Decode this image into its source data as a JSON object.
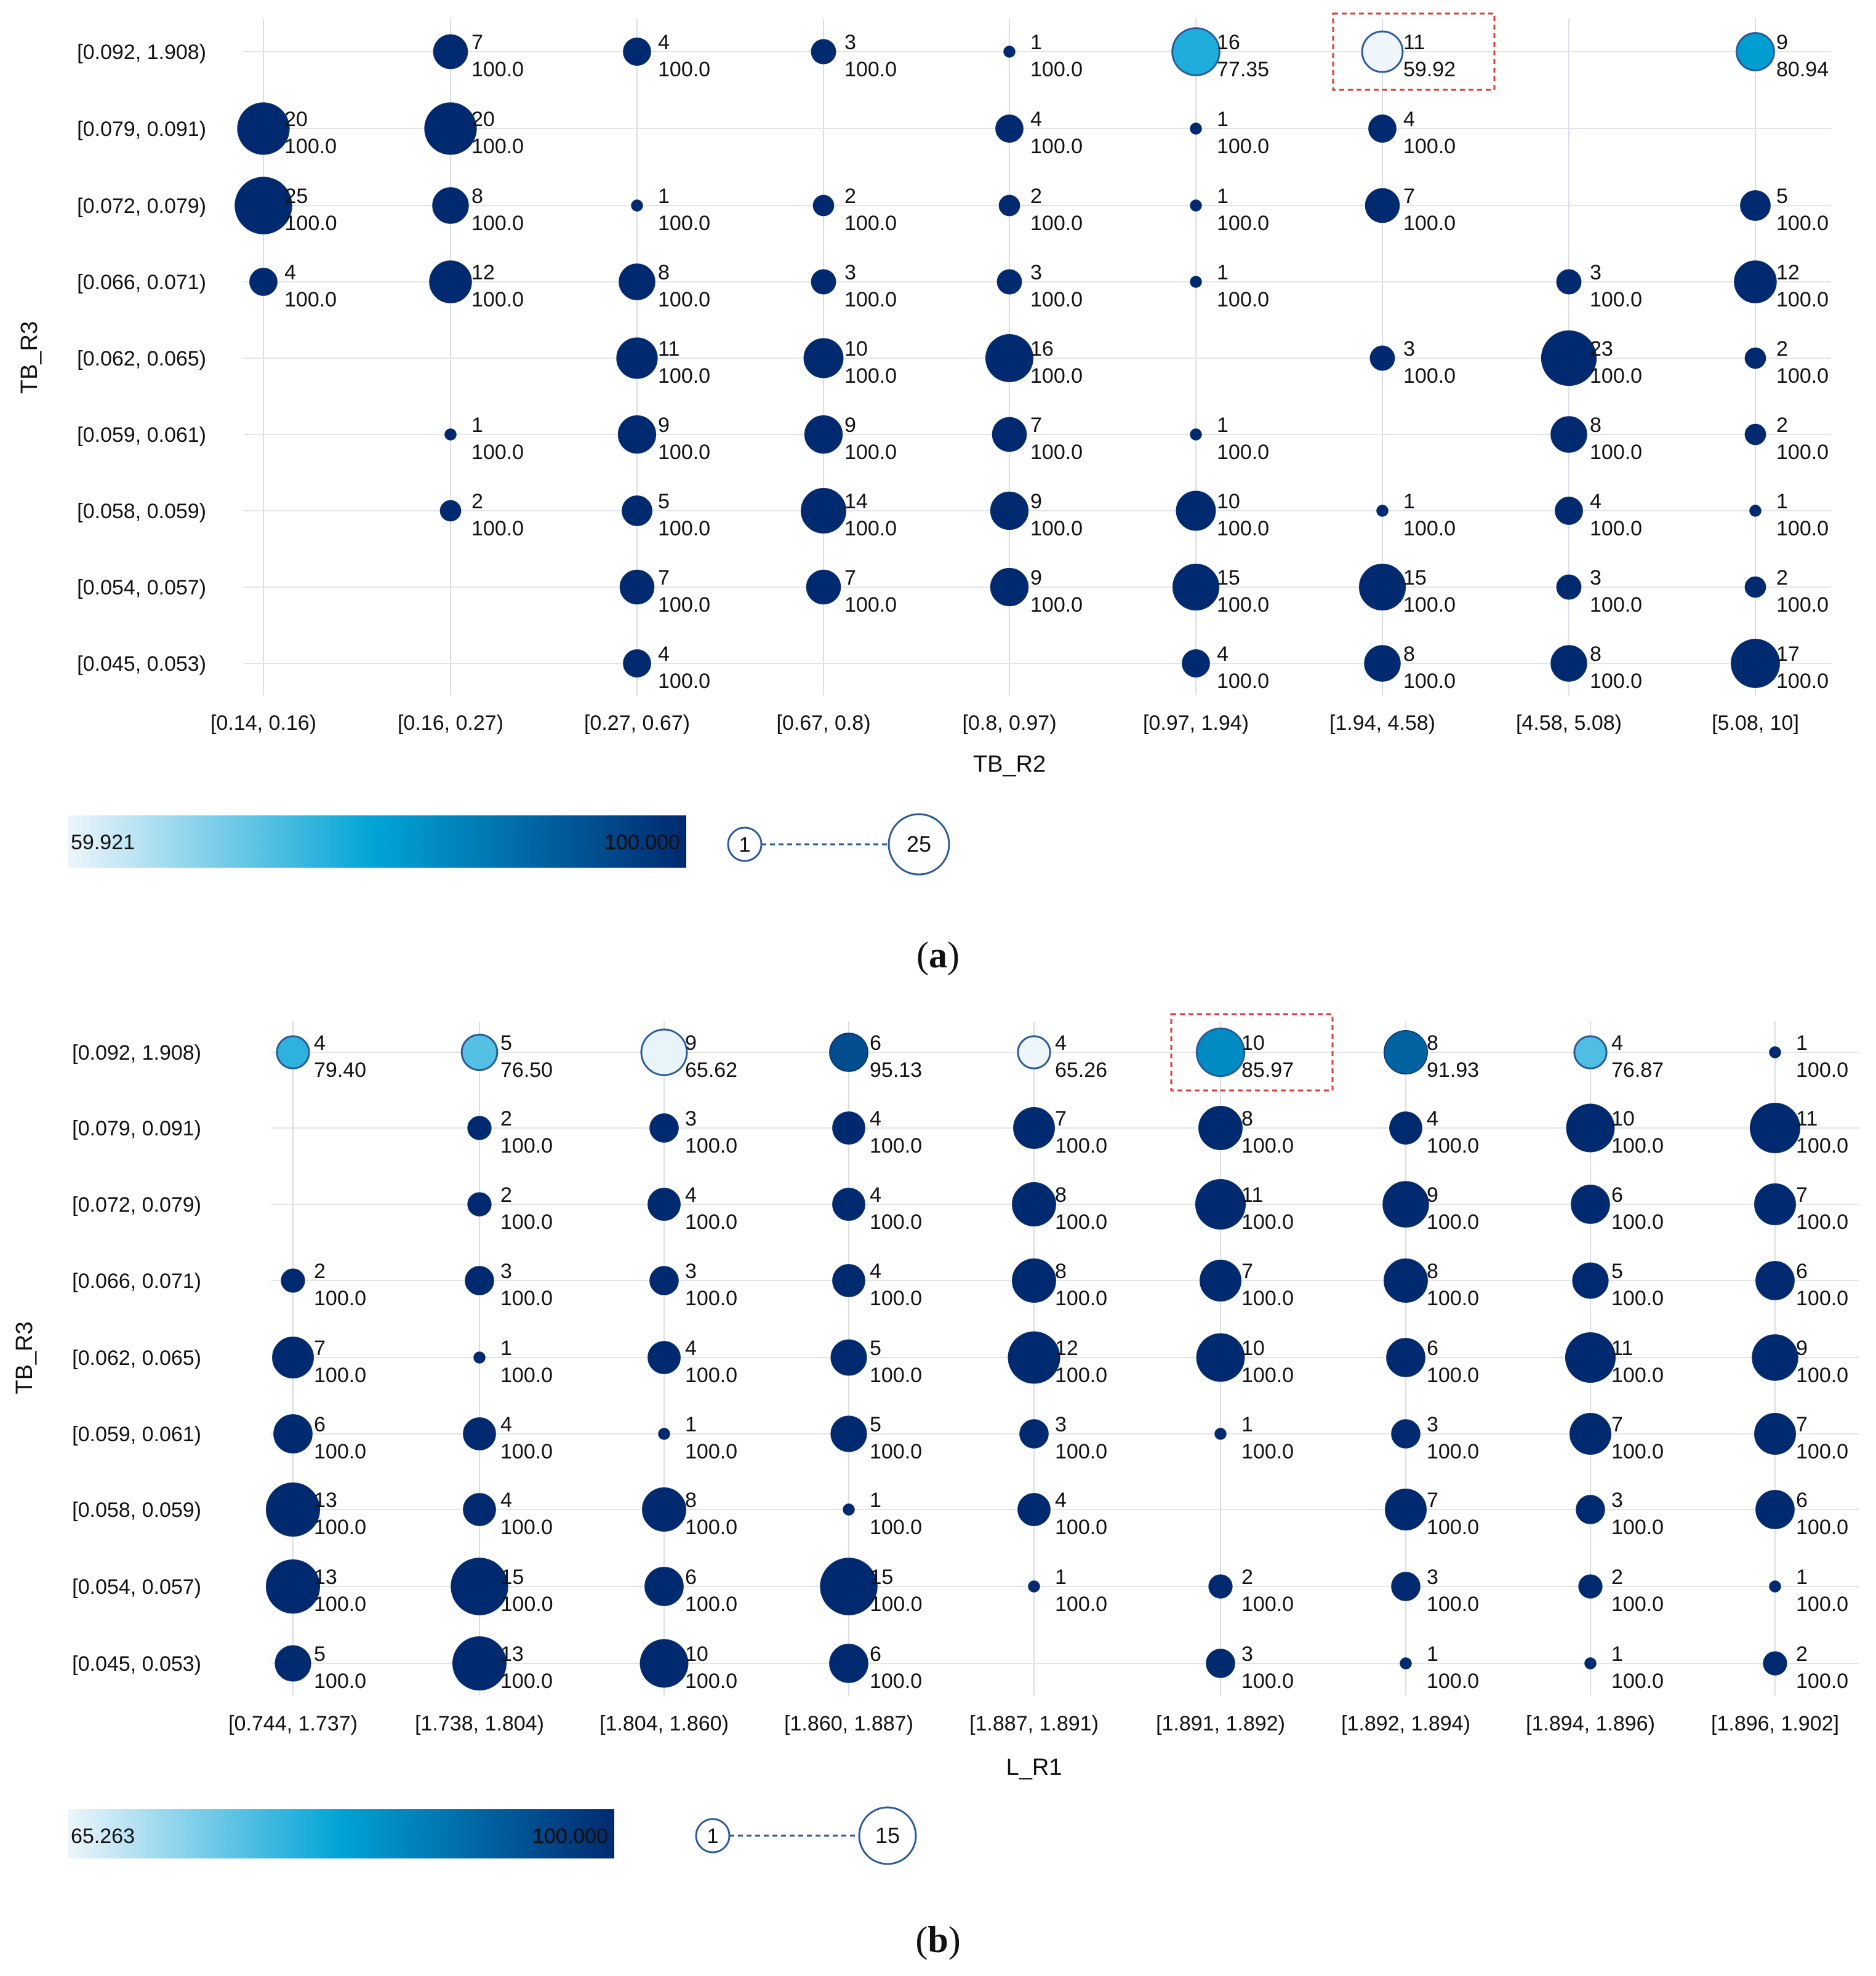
{
  "chart_data": [
    {
      "type": "scatter",
      "subtype": "bubble",
      "panel_label": "(a)",
      "xlabel": "TB_R2",
      "ylabel": "TB_R3",
      "x_categories": [
        "[0.14, 0.16)",
        "[0.16, 0.27)",
        "[0.27, 0.67)",
        "[0.67, 0.8)",
        "[0.8, 0.97)",
        "[0.97, 1.94)",
        "[1.94, 4.58)",
        "[4.58, 5.08)",
        "[5.08, 10]"
      ],
      "y_categories": [
        "[0.092, 1.908)",
        "[0.079, 0.091)",
        "[0.072, 0.079)",
        "[0.066, 0.071)",
        "[0.062, 0.065)",
        "[0.059, 0.061)",
        "[0.058, 0.059)",
        "[0.054, 0.057)",
        "[0.045, 0.053)"
      ],
      "grid": true,
      "color_scale": {
        "min_label": "59.921",
        "max_label": "100.000",
        "min": 59.921,
        "max": 100.0,
        "colors": [
          "#eef5fb",
          "#00a3d6",
          "#002a70"
        ]
      },
      "size_scale": {
        "min_label": "1",
        "max_label": "25",
        "min": 1,
        "max": 25
      },
      "highlight": {
        "x": 6,
        "y": 0
      },
      "points": [
        {
          "x": 1,
          "y": 0,
          "count": "7",
          "value": "100.0"
        },
        {
          "x": 2,
          "y": 0,
          "count": "4",
          "value": "100.0"
        },
        {
          "x": 3,
          "y": 0,
          "count": "3",
          "value": "100.0"
        },
        {
          "x": 4,
          "y": 0,
          "count": "1",
          "value": "100.0"
        },
        {
          "x": 5,
          "y": 0,
          "count": "16",
          "value": "77.35"
        },
        {
          "x": 6,
          "y": 0,
          "count": "11",
          "value": "59.92"
        },
        {
          "x": 8,
          "y": 0,
          "count": "9",
          "value": "80.94"
        },
        {
          "x": 0,
          "y": 1,
          "count": "20",
          "value": "100.0"
        },
        {
          "x": 1,
          "y": 1,
          "count": "20",
          "value": "100.0"
        },
        {
          "x": 4,
          "y": 1,
          "count": "4",
          "value": "100.0"
        },
        {
          "x": 5,
          "y": 1,
          "count": "1",
          "value": "100.0"
        },
        {
          "x": 6,
          "y": 1,
          "count": "4",
          "value": "100.0"
        },
        {
          "x": 0,
          "y": 2,
          "count": "25",
          "value": "100.0"
        },
        {
          "x": 1,
          "y": 2,
          "count": "8",
          "value": "100.0"
        },
        {
          "x": 2,
          "y": 2,
          "count": "1",
          "value": "100.0"
        },
        {
          "x": 3,
          "y": 2,
          "count": "2",
          "value": "100.0"
        },
        {
          "x": 4,
          "y": 2,
          "count": "2",
          "value": "100.0"
        },
        {
          "x": 5,
          "y": 2,
          "count": "1",
          "value": "100.0"
        },
        {
          "x": 6,
          "y": 2,
          "count": "7",
          "value": "100.0"
        },
        {
          "x": 8,
          "y": 2,
          "count": "5",
          "value": "100.0"
        },
        {
          "x": 0,
          "y": 3,
          "count": "4",
          "value": "100.0"
        },
        {
          "x": 1,
          "y": 3,
          "count": "12",
          "value": "100.0"
        },
        {
          "x": 2,
          "y": 3,
          "count": "8",
          "value": "100.0"
        },
        {
          "x": 3,
          "y": 3,
          "count": "3",
          "value": "100.0"
        },
        {
          "x": 4,
          "y": 3,
          "count": "3",
          "value": "100.0"
        },
        {
          "x": 5,
          "y": 3,
          "count": "1",
          "value": "100.0"
        },
        {
          "x": 7,
          "y": 3,
          "count": "3",
          "value": "100.0"
        },
        {
          "x": 8,
          "y": 3,
          "count": "12",
          "value": "100.0"
        },
        {
          "x": 2,
          "y": 4,
          "count": "11",
          "value": "100.0"
        },
        {
          "x": 3,
          "y": 4,
          "count": "10",
          "value": "100.0"
        },
        {
          "x": 4,
          "y": 4,
          "count": "16",
          "value": "100.0"
        },
        {
          "x": 6,
          "y": 4,
          "count": "3",
          "value": "100.0"
        },
        {
          "x": 7,
          "y": 4,
          "count": "23",
          "value": "100.0"
        },
        {
          "x": 8,
          "y": 4,
          "count": "2",
          "value": "100.0"
        },
        {
          "x": 1,
          "y": 5,
          "count": "1",
          "value": "100.0"
        },
        {
          "x": 2,
          "y": 5,
          "count": "9",
          "value": "100.0"
        },
        {
          "x": 3,
          "y": 5,
          "count": "9",
          "value": "100.0"
        },
        {
          "x": 4,
          "y": 5,
          "count": "7",
          "value": "100.0"
        },
        {
          "x": 5,
          "y": 5,
          "count": "1",
          "value": "100.0"
        },
        {
          "x": 7,
          "y": 5,
          "count": "8",
          "value": "100.0"
        },
        {
          "x": 8,
          "y": 5,
          "count": "2",
          "value": "100.0"
        },
        {
          "x": 1,
          "y": 6,
          "count": "2",
          "value": "100.0"
        },
        {
          "x": 2,
          "y": 6,
          "count": "5",
          "value": "100.0"
        },
        {
          "x": 3,
          "y": 6,
          "count": "14",
          "value": "100.0"
        },
        {
          "x": 4,
          "y": 6,
          "count": "9",
          "value": "100.0"
        },
        {
          "x": 5,
          "y": 6,
          "count": "10",
          "value": "100.0"
        },
        {
          "x": 6,
          "y": 6,
          "count": "1",
          "value": "100.0"
        },
        {
          "x": 7,
          "y": 6,
          "count": "4",
          "value": "100.0"
        },
        {
          "x": 8,
          "y": 6,
          "count": "1",
          "value": "100.0"
        },
        {
          "x": 2,
          "y": 7,
          "count": "7",
          "value": "100.0"
        },
        {
          "x": 3,
          "y": 7,
          "count": "7",
          "value": "100.0"
        },
        {
          "x": 4,
          "y": 7,
          "count": "9",
          "value": "100.0"
        },
        {
          "x": 5,
          "y": 7,
          "count": "15",
          "value": "100.0"
        },
        {
          "x": 6,
          "y": 7,
          "count": "15",
          "value": "100.0"
        },
        {
          "x": 7,
          "y": 7,
          "count": "3",
          "value": "100.0"
        },
        {
          "x": 8,
          "y": 7,
          "count": "2",
          "value": "100.0"
        },
        {
          "x": 2,
          "y": 8,
          "count": "4",
          "value": "100.0"
        },
        {
          "x": 5,
          "y": 8,
          "count": "4",
          "value": "100.0"
        },
        {
          "x": 6,
          "y": 8,
          "count": "8",
          "value": "100.0"
        },
        {
          "x": 7,
          "y": 8,
          "count": "8",
          "value": "100.0"
        },
        {
          "x": 8,
          "y": 8,
          "count": "17",
          "value": "100.0"
        }
      ]
    },
    {
      "type": "scatter",
      "subtype": "bubble",
      "panel_label": "(b)",
      "xlabel": "L_R1",
      "ylabel": "TB_R3",
      "x_categories": [
        "[0.744, 1.737)",
        "[1.738, 1.804)",
        "[1.804, 1.860)",
        "[1.860, 1.887)",
        "[1.887, 1.891)",
        "[1.891, 1.892)",
        "[1.892, 1.894)",
        "[1.894, 1.896)",
        "[1.896, 1.902]"
      ],
      "y_categories": [
        "[0.092, 1.908)",
        "[0.079, 0.091)",
        "[0.072, 0.079)",
        "[0.066, 0.071)",
        "[0.062, 0.065)",
        "[0.059, 0.061)",
        "[0.058, 0.059)",
        "[0.054, 0.057)",
        "[0.045, 0.053)"
      ],
      "grid": true,
      "color_scale": {
        "min_label": "65.263",
        "max_label": "100.000",
        "min": 65.263,
        "max": 100.0,
        "colors": [
          "#eef5fb",
          "#00a3d6",
          "#002a70"
        ]
      },
      "size_scale": {
        "min_label": "1",
        "max_label": "15",
        "min": 1,
        "max": 15
      },
      "highlight": {
        "x": 5,
        "y": 0
      },
      "points": [
        {
          "x": 0,
          "y": 0,
          "count": "4",
          "value": "79.40"
        },
        {
          "x": 1,
          "y": 0,
          "count": "5",
          "value": "76.50"
        },
        {
          "x": 2,
          "y": 0,
          "count": "9",
          "value": "65.62"
        },
        {
          "x": 3,
          "y": 0,
          "count": "6",
          "value": "95.13"
        },
        {
          "x": 4,
          "y": 0,
          "count": "4",
          "value": "65.26"
        },
        {
          "x": 5,
          "y": 0,
          "count": "10",
          "value": "85.97"
        },
        {
          "x": 6,
          "y": 0,
          "count": "8",
          "value": "91.93"
        },
        {
          "x": 7,
          "y": 0,
          "count": "4",
          "value": "76.87"
        },
        {
          "x": 8,
          "y": 0,
          "count": "1",
          "value": "100.0"
        },
        {
          "x": 1,
          "y": 1,
          "count": "2",
          "value": "100.0"
        },
        {
          "x": 2,
          "y": 1,
          "count": "3",
          "value": "100.0"
        },
        {
          "x": 3,
          "y": 1,
          "count": "4",
          "value": "100.0"
        },
        {
          "x": 4,
          "y": 1,
          "count": "7",
          "value": "100.0"
        },
        {
          "x": 5,
          "y": 1,
          "count": "8",
          "value": "100.0"
        },
        {
          "x": 6,
          "y": 1,
          "count": "4",
          "value": "100.0"
        },
        {
          "x": 7,
          "y": 1,
          "count": "10",
          "value": "100.0"
        },
        {
          "x": 8,
          "y": 1,
          "count": "11",
          "value": "100.0"
        },
        {
          "x": 1,
          "y": 2,
          "count": "2",
          "value": "100.0"
        },
        {
          "x": 2,
          "y": 2,
          "count": "4",
          "value": "100.0"
        },
        {
          "x": 3,
          "y": 2,
          "count": "4",
          "value": "100.0"
        },
        {
          "x": 4,
          "y": 2,
          "count": "8",
          "value": "100.0"
        },
        {
          "x": 5,
          "y": 2,
          "count": "11",
          "value": "100.0"
        },
        {
          "x": 6,
          "y": 2,
          "count": "9",
          "value": "100.0"
        },
        {
          "x": 7,
          "y": 2,
          "count": "6",
          "value": "100.0"
        },
        {
          "x": 8,
          "y": 2,
          "count": "7",
          "value": "100.0"
        },
        {
          "x": 0,
          "y": 3,
          "count": "2",
          "value": "100.0"
        },
        {
          "x": 1,
          "y": 3,
          "count": "3",
          "value": "100.0"
        },
        {
          "x": 2,
          "y": 3,
          "count": "3",
          "value": "100.0"
        },
        {
          "x": 3,
          "y": 3,
          "count": "4",
          "value": "100.0"
        },
        {
          "x": 4,
          "y": 3,
          "count": "8",
          "value": "100.0"
        },
        {
          "x": 5,
          "y": 3,
          "count": "7",
          "value": "100.0"
        },
        {
          "x": 6,
          "y": 3,
          "count": "8",
          "value": "100.0"
        },
        {
          "x": 7,
          "y": 3,
          "count": "5",
          "value": "100.0"
        },
        {
          "x": 8,
          "y": 3,
          "count": "6",
          "value": "100.0"
        },
        {
          "x": 0,
          "y": 4,
          "count": "7",
          "value": "100.0"
        },
        {
          "x": 1,
          "y": 4,
          "count": "1",
          "value": "100.0"
        },
        {
          "x": 2,
          "y": 4,
          "count": "4",
          "value": "100.0"
        },
        {
          "x": 3,
          "y": 4,
          "count": "5",
          "value": "100.0"
        },
        {
          "x": 4,
          "y": 4,
          "count": "12",
          "value": "100.0"
        },
        {
          "x": 5,
          "y": 4,
          "count": "10",
          "value": "100.0"
        },
        {
          "x": 6,
          "y": 4,
          "count": "6",
          "value": "100.0"
        },
        {
          "x": 7,
          "y": 4,
          "count": "11",
          "value": "100.0"
        },
        {
          "x": 8,
          "y": 4,
          "count": "9",
          "value": "100.0"
        },
        {
          "x": 0,
          "y": 5,
          "count": "6",
          "value": "100.0"
        },
        {
          "x": 1,
          "y": 5,
          "count": "4",
          "value": "100.0"
        },
        {
          "x": 2,
          "y": 5,
          "count": "1",
          "value": "100.0"
        },
        {
          "x": 3,
          "y": 5,
          "count": "5",
          "value": "100.0"
        },
        {
          "x": 4,
          "y": 5,
          "count": "3",
          "value": "100.0"
        },
        {
          "x": 5,
          "y": 5,
          "count": "1",
          "value": "100.0"
        },
        {
          "x": 6,
          "y": 5,
          "count": "3",
          "value": "100.0"
        },
        {
          "x": 7,
          "y": 5,
          "count": "7",
          "value": "100.0"
        },
        {
          "x": 8,
          "y": 5,
          "count": "7",
          "value": "100.0"
        },
        {
          "x": 0,
          "y": 6,
          "count": "13",
          "value": "100.0"
        },
        {
          "x": 1,
          "y": 6,
          "count": "4",
          "value": "100.0"
        },
        {
          "x": 2,
          "y": 6,
          "count": "8",
          "value": "100.0"
        },
        {
          "x": 3,
          "y": 6,
          "count": "1",
          "value": "100.0"
        },
        {
          "x": 4,
          "y": 6,
          "count": "4",
          "value": "100.0"
        },
        {
          "x": 6,
          "y": 6,
          "count": "7",
          "value": "100.0"
        },
        {
          "x": 7,
          "y": 6,
          "count": "3",
          "value": "100.0"
        },
        {
          "x": 8,
          "y": 6,
          "count": "6",
          "value": "100.0"
        },
        {
          "x": 0,
          "y": 7,
          "count": "13",
          "value": "100.0"
        },
        {
          "x": 1,
          "y": 7,
          "count": "15",
          "value": "100.0"
        },
        {
          "x": 2,
          "y": 7,
          "count": "6",
          "value": "100.0"
        },
        {
          "x": 3,
          "y": 7,
          "count": "15",
          "value": "100.0"
        },
        {
          "x": 4,
          "y": 7,
          "count": "1",
          "value": "100.0"
        },
        {
          "x": 5,
          "y": 7,
          "count": "2",
          "value": "100.0"
        },
        {
          "x": 6,
          "y": 7,
          "count": "3",
          "value": "100.0"
        },
        {
          "x": 7,
          "y": 7,
          "count": "2",
          "value": "100.0"
        },
        {
          "x": 8,
          "y": 7,
          "count": "1",
          "value": "100.0"
        },
        {
          "x": 0,
          "y": 8,
          "count": "5",
          "value": "100.0"
        },
        {
          "x": 1,
          "y": 8,
          "count": "13",
          "value": "100.0"
        },
        {
          "x": 2,
          "y": 8,
          "count": "10",
          "value": "100.0"
        },
        {
          "x": 3,
          "y": 8,
          "count": "6",
          "value": "100.0"
        },
        {
          "x": 5,
          "y": 8,
          "count": "3",
          "value": "100.0"
        },
        {
          "x": 6,
          "y": 8,
          "count": "1",
          "value": "100.0"
        },
        {
          "x": 7,
          "y": 8,
          "count": "1",
          "value": "100.0"
        },
        {
          "x": 8,
          "y": 8,
          "count": "2",
          "value": "100.0"
        }
      ]
    }
  ]
}
